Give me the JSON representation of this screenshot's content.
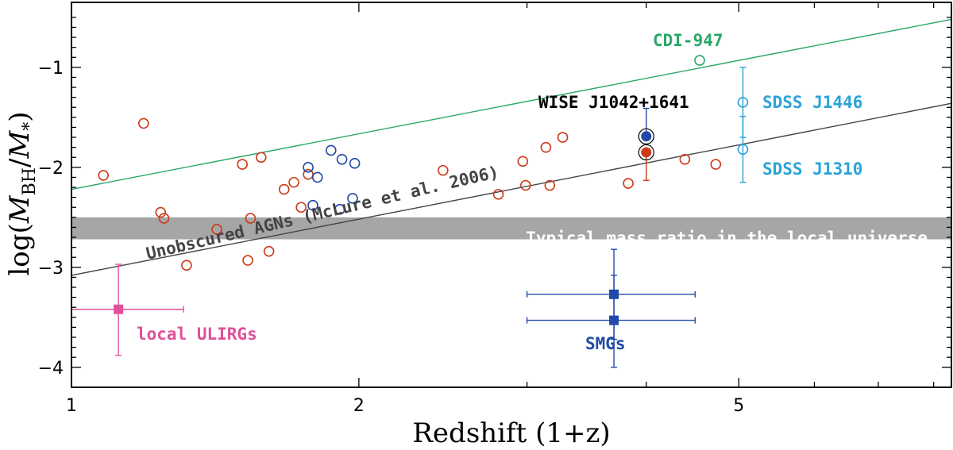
{
  "chart_data": {
    "type": "scatter",
    "xscale": "log",
    "xlim": [
      1,
      8.35
    ],
    "ylim": [
      -4.2,
      -0.35
    ],
    "xlabel": "Redshift (1+z)",
    "ylabel": "log(M_BH/M_*)",
    "ylabel_parts": {
      "pre": "log(",
      "m1": "M",
      "s1": "BH",
      "slash": "/",
      "m2": "M",
      "s2": "*",
      "post": ")"
    },
    "xticks": [
      1,
      2,
      5
    ],
    "xtick_labels": [
      "1",
      "2",
      "5"
    ],
    "yticks": [
      -1,
      -2,
      -3,
      -4
    ],
    "ytick_labels": [
      "−1",
      "−2",
      "−3",
      "−4"
    ],
    "colors": {
      "red": "#cc3a1a",
      "blue": "#1f4aa8",
      "green": "#2aa866",
      "cyan": "#2ba3d8",
      "pink": "#e0509a",
      "dark_line": "#444444",
      "band": "#a6a6a6"
    },
    "band": {
      "y_range": [
        -2.72,
        -2.5
      ],
      "label": "Typical mass ratio in the local universe"
    },
    "lines": [
      {
        "id": "mclure",
        "label": "Unobscured AGNs (McLure et al. 2006)",
        "x": [
          1,
          8.35
        ],
        "y": [
          -3.08,
          -1.36
        ]
      },
      {
        "id": "cdi",
        "x": [
          1,
          8.35
        ],
        "y": [
          -2.22,
          -0.52
        ]
      }
    ],
    "series": [
      {
        "id": "red-open",
        "marker": "open-circle",
        "color": "#cc3a1a",
        "points": [
          [
            1.08,
            -2.08
          ],
          [
            1.19,
            -1.56
          ],
          [
            1.24,
            -2.45
          ],
          [
            1.25,
            -2.51
          ],
          [
            1.32,
            -2.98
          ],
          [
            1.42,
            -2.62
          ],
          [
            1.51,
            -1.97
          ],
          [
            1.53,
            -2.93
          ],
          [
            1.54,
            -2.51
          ],
          [
            1.58,
            -1.9
          ],
          [
            1.61,
            -2.84
          ],
          [
            1.67,
            -2.22
          ],
          [
            1.71,
            -2.15
          ],
          [
            1.74,
            -2.4
          ],
          [
            1.77,
            -2.07
          ],
          [
            2.45,
            -2.03
          ],
          [
            2.8,
            -2.27
          ],
          [
            2.97,
            -1.94
          ],
          [
            2.99,
            -2.18
          ],
          [
            3.14,
            -1.8
          ],
          [
            3.17,
            -2.18
          ],
          [
            3.27,
            -1.7
          ],
          [
            3.83,
            -2.16
          ],
          [
            4.39,
            -1.92
          ],
          [
            4.73,
            -1.97
          ]
        ]
      },
      {
        "id": "blue-open",
        "marker": "open-circle",
        "color": "#1f4aa8",
        "points": [
          [
            1.77,
            -2.0
          ],
          [
            1.79,
            -2.38
          ],
          [
            1.81,
            -2.1
          ],
          [
            1.87,
            -1.83
          ],
          [
            1.91,
            -2.42
          ],
          [
            1.92,
            -1.92
          ],
          [
            1.97,
            -2.31
          ],
          [
            1.98,
            -1.96
          ]
        ]
      },
      {
        "id": "wise",
        "marker": "filled-circle-ring",
        "label": "WISE J1042+1641",
        "points": [
          {
            "x": 4.0,
            "y": -1.69,
            "color": "#1f4aa8",
            "err_up": 0.28,
            "err_down": 0.0
          },
          {
            "x": 4.0,
            "y": -1.85,
            "color": "#cc3a1a",
            "err_up": 0.0,
            "err_down": 0.28
          }
        ]
      },
      {
        "id": "cdi947",
        "marker": "open-circle",
        "color": "#2aa866",
        "label": "CDI-947",
        "points": [
          [
            4.55,
            -0.93
          ]
        ]
      },
      {
        "id": "sdss",
        "marker": "open-circle",
        "color": "#2ba3d8",
        "points": [
          {
            "x": 5.05,
            "y": -1.35,
            "err_up": 0.35,
            "err_down": 0.35,
            "label": "SDSS J1446"
          },
          {
            "x": 5.05,
            "y": -1.82,
            "err_up": 0.33,
            "err_down": 0.33,
            "label": "SDSS J1310"
          }
        ]
      },
      {
        "id": "ulirg",
        "marker": "filled-square",
        "color": "#e0509a",
        "label": "local ULIRGs",
        "points": [
          {
            "x": 1.12,
            "y": -3.42,
            "xerr_lo": 1.0,
            "xerr_hi": 1.31,
            "err_up": 0.45,
            "err_down": 0.46
          }
        ]
      },
      {
        "id": "smg",
        "marker": "filled-square",
        "color": "#1f4aa8",
        "label": "SMGs",
        "points": [
          {
            "x": 3.7,
            "y": -3.27,
            "xerr_lo": 3.0,
            "xerr_hi": 4.5,
            "err_up": 0.45,
            "err_down": 0.45
          },
          {
            "x": 3.7,
            "y": -3.53,
            "xerr_lo": 3.0,
            "xerr_hi": 4.5,
            "err_up": 0.45,
            "err_down": 0.47
          }
        ]
      }
    ]
  }
}
